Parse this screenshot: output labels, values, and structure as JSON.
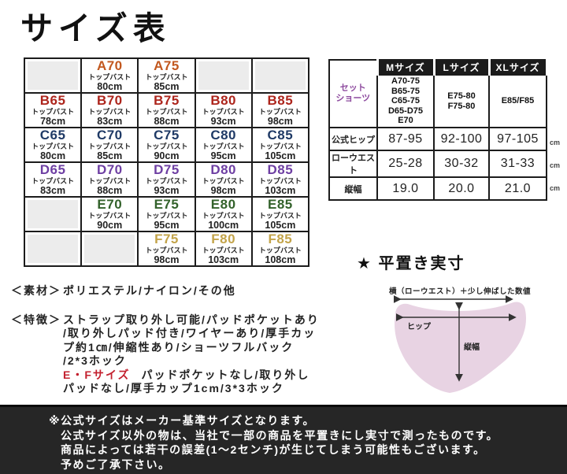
{
  "title": "サイズ表",
  "cup_grid": {
    "sub_label": "トップバスト",
    "cup_colors": {
      "A": "#c2581f",
      "B": "#ad251c",
      "C": "#1f3a66",
      "D": "#6e3fa3",
      "E": "#33622b",
      "F": "#c3a44a"
    },
    "rows": [
      [
        null,
        {
          "size": "A70",
          "bust": "80cm"
        },
        {
          "size": "A75",
          "bust": "85cm"
        },
        null,
        null
      ],
      [
        {
          "size": "B65",
          "bust": "78cm"
        },
        {
          "size": "B70",
          "bust": "83cm"
        },
        {
          "size": "B75",
          "bust": "88cm"
        },
        {
          "size": "B80",
          "bust": "93cm"
        },
        {
          "size": "B85",
          "bust": "98cm"
        }
      ],
      [
        {
          "size": "C65",
          "bust": "80cm"
        },
        {
          "size": "C70",
          "bust": "85cm"
        },
        {
          "size": "C75",
          "bust": "90cm"
        },
        {
          "size": "C80",
          "bust": "95cm"
        },
        {
          "size": "C85",
          "bust": "105cm"
        }
      ],
      [
        {
          "size": "D65",
          "bust": "83cm"
        },
        {
          "size": "D70",
          "bust": "88cm"
        },
        {
          "size": "D75",
          "bust": "93cm"
        },
        {
          "size": "D80",
          "bust": "98cm"
        },
        {
          "size": "D85",
          "bust": "103cm"
        }
      ],
      [
        null,
        {
          "size": "E70",
          "bust": "90cm"
        },
        {
          "size": "E75",
          "bust": "95cm"
        },
        {
          "size": "E80",
          "bust": "100cm"
        },
        {
          "size": "E85",
          "bust": "105cm"
        }
      ],
      [
        null,
        null,
        {
          "size": "F75",
          "bust": "98cm"
        },
        {
          "size": "F80",
          "bust": "103cm"
        },
        {
          "size": "F85",
          "bust": "108cm"
        }
      ]
    ]
  },
  "set_table": {
    "corner_label": "セット\nショーツ",
    "corner_color": "#8d4a9e",
    "columns": [
      "Mサイズ",
      "Lサイズ",
      "XLサイズ"
    ],
    "shorts_values": [
      "A70-75\nB65-75\nC65-75\nD65-D75\nE70",
      "E75-80\nF75-80",
      "E85/F85"
    ],
    "rows": [
      {
        "label": "公式ヒップ",
        "values": [
          "87-95",
          "92-100",
          "97-105"
        ],
        "unit": "cm"
      },
      {
        "label": "ローウエスト",
        "values": [
          "25-28",
          "30-32",
          "31-33"
        ],
        "unit": "cm"
      },
      {
        "label": "縦幅",
        "values": [
          "19.0",
          "20.0",
          "21.0"
        ],
        "unit": "cm"
      }
    ]
  },
  "flat_measure": {
    "heading": "★ 平置き実寸",
    "note": "横（ローウエスト）＋少し伸ばした数値",
    "hip_label": "ヒップ",
    "height_label": "縦幅",
    "shape_color": "#e8d3e3"
  },
  "material": {
    "label": "＜素材＞",
    "text": "ポリエステル/ナイロン/その他"
  },
  "features": {
    "label": "＜特徴＞",
    "lines": [
      "ストラップ取り外し可能/パッドポケットあり",
      "/取り外しパッド付き/ワイヤーあり/厚手カッ",
      "プ約1㎝/伸縮性あり/ショーツフルバック",
      "/2*3ホック"
    ],
    "ef_label": "E・Fサイズ",
    "ef_label_color": "#c3202e",
    "ef_first_line": "パッドポケットなし/取り外し",
    "ef_second_line": "パッドなし/厚手カップ1cm/3*3ホック"
  },
  "footer": {
    "lines": [
      "※公式サイズはメーカー基準サイズとなります。",
      "公式サイズ以外の物は、当社で一部の商品を平置きにし実寸で測ったものです。",
      "商品によっては若干の誤差(1～2センチ)が生じてしまう可能性もございます。",
      "予めご了承下さい。"
    ]
  }
}
